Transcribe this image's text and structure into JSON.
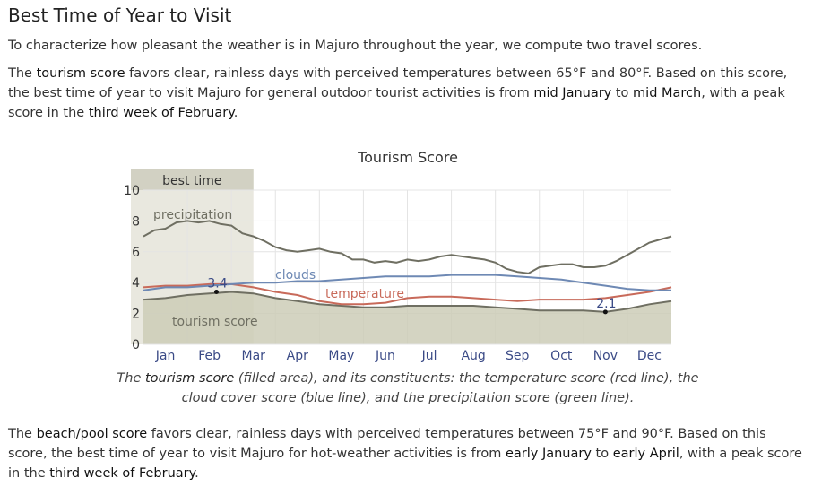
{
  "heading": "Best Time of Year to Visit",
  "intro": "To characterize how pleasant the weather is in Majuro throughout the year, we compute two travel scores.",
  "tourism_para": {
    "p1": "The ",
    "k1": "tourism score",
    "p2": " favors clear, rainless days with perceived temperatures between 65°F and 80°F. Based on this score, the best time of year to visit Majuro for general outdoor tourist activities is from ",
    "k2": "mid January",
    "p3": " to ",
    "k3": "mid March",
    "p4": ", with a peak score in the ",
    "k4": "third week of February",
    "p5": "."
  },
  "caption": {
    "p1": "The ",
    "k1": "tourism score",
    "p2": " (filled area), and its constituents: the temperature score (red line), the cloud cover score (blue line), and the precipitation score (green line)."
  },
  "beach_para": {
    "p1": "The ",
    "k1": "beach/pool score",
    "p2": " favors clear, rainless days with perceived temperatures between 75°F and 90°F. Based on this score, the best time of year to visit Majuro for hot-weather activities is from ",
    "k2": "early January",
    "p3": " to ",
    "k3": "early April",
    "p4": ", with a peak score in the ",
    "k4": "third week of February",
    "p5": "."
  },
  "chart_data": {
    "type": "area",
    "title": "Tourism Score",
    "ylim": [
      0,
      10
    ],
    "y_ticks": [
      0,
      2,
      4,
      6,
      8,
      10
    ],
    "month_labels": [
      "Jan",
      "Feb",
      "Mar",
      "Apr",
      "May",
      "Jun",
      "Jul",
      "Aug",
      "Sep",
      "Oct",
      "Nov",
      "Dec"
    ],
    "x_range": [
      0,
      12
    ],
    "best_time": {
      "label": "best time",
      "start": 0,
      "end": 2.5
    },
    "series": [
      {
        "name": "precipitation",
        "color": "#6f6f62",
        "x": [
          0,
          0.25,
          0.5,
          0.75,
          1,
          1.25,
          1.5,
          1.75,
          2,
          2.25,
          2.5,
          2.75,
          3,
          3.25,
          3.5,
          3.75,
          4,
          4.25,
          4.5,
          4.75,
          5,
          5.25,
          5.5,
          5.75,
          6,
          6.25,
          6.5,
          6.75,
          7,
          7.25,
          7.5,
          7.75,
          8,
          8.25,
          8.5,
          8.75,
          9,
          9.25,
          9.5,
          9.75,
          10,
          10.25,
          10.5,
          10.75,
          11,
          11.25,
          11.5,
          11.75,
          12
        ],
        "values": [
          7.0,
          7.4,
          7.5,
          7.9,
          8.0,
          7.9,
          8.0,
          7.8,
          7.7,
          7.2,
          7.0,
          6.7,
          6.3,
          6.1,
          6.0,
          6.1,
          6.2,
          6.0,
          5.9,
          5.5,
          5.5,
          5.3,
          5.4,
          5.3,
          5.5,
          5.4,
          5.5,
          5.7,
          5.8,
          5.7,
          5.6,
          5.5,
          5.3,
          4.9,
          4.7,
          4.6,
          5.0,
          5.1,
          5.2,
          5.2,
          5.0,
          5.0,
          5.1,
          5.4,
          5.8,
          6.2,
          6.6,
          6.8,
          7.0
        ]
      },
      {
        "name": "clouds",
        "color": "#6e89b4",
        "x": [
          0,
          0.5,
          1,
          1.5,
          2,
          2.5,
          3,
          3.5,
          4,
          4.5,
          5,
          5.5,
          6,
          6.5,
          7,
          7.5,
          8,
          8.5,
          9,
          9.5,
          10,
          10.5,
          11,
          11.5,
          12
        ],
        "values": [
          3.5,
          3.7,
          3.7,
          3.8,
          3.9,
          4.0,
          4.0,
          4.1,
          4.1,
          4.2,
          4.3,
          4.4,
          4.4,
          4.4,
          4.5,
          4.5,
          4.5,
          4.4,
          4.3,
          4.2,
          4.0,
          3.8,
          3.6,
          3.5,
          3.5
        ]
      },
      {
        "name": "temperature",
        "color": "#c86a5a",
        "x": [
          0,
          0.5,
          1,
          1.5,
          2,
          2.5,
          3,
          3.5,
          4,
          4.5,
          5,
          5.5,
          6,
          6.5,
          7,
          7.5,
          8,
          8.5,
          9,
          9.5,
          10,
          10.5,
          11,
          11.5,
          12
        ],
        "values": [
          3.7,
          3.8,
          3.8,
          3.9,
          3.9,
          3.7,
          3.4,
          3.2,
          2.8,
          2.6,
          2.6,
          2.7,
          3.0,
          3.1,
          3.1,
          3.0,
          2.9,
          2.8,
          2.9,
          2.9,
          2.9,
          3.0,
          3.2,
          3.4,
          3.7
        ]
      },
      {
        "name": "tourism score",
        "color": "#6f6f62",
        "fill": "#cdccb7",
        "x": [
          0,
          0.5,
          1,
          1.5,
          2,
          2.5,
          3,
          3.5,
          4,
          4.5,
          5,
          5.5,
          6,
          6.5,
          7,
          7.5,
          8,
          8.5,
          9,
          9.5,
          10,
          10.5,
          11,
          11.5,
          12
        ],
        "values": [
          2.9,
          3.0,
          3.2,
          3.3,
          3.4,
          3.3,
          3.0,
          2.8,
          2.6,
          2.5,
          2.4,
          2.4,
          2.5,
          2.5,
          2.5,
          2.5,
          2.4,
          2.3,
          2.2,
          2.2,
          2.2,
          2.1,
          2.3,
          2.6,
          2.8
        ]
      }
    ],
    "annotations": [
      {
        "label": "3.4",
        "x": 1.66,
        "y": 3.4
      },
      {
        "label": "2.1",
        "x": 10.5,
        "y": 2.1
      }
    ]
  }
}
